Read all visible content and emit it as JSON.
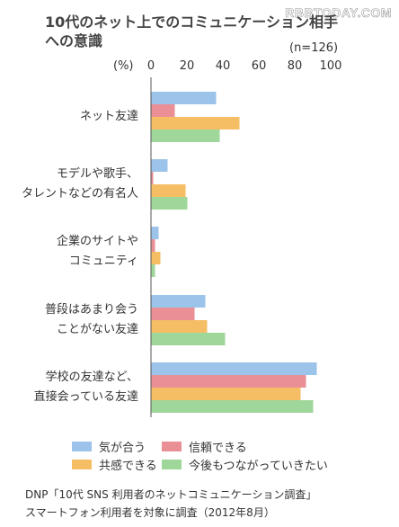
{
  "watermark": "RBBTODAY.COM",
  "chart_data": {
    "type": "bar",
    "orientation": "horizontal",
    "title": "10代のネット上でのコミュニケーション相手への意識",
    "sample_size": "(n=126)",
    "unit_label": "(%)",
    "xlim": [
      0,
      100
    ],
    "ticks": [
      0,
      20,
      40,
      60,
      80,
      100
    ],
    "grid": false,
    "legend_position": "bottom",
    "categories": [
      "ネット友達",
      "モデルや歌手、\nタレントなどの有名人",
      "企業のサイトや\nコミュニティ",
      "普段はあまり会う\nことがない友達",
      "学校の友達など、\n直接会っている友達"
    ],
    "series": [
      {
        "name": "気が合う",
        "color": "#9cc3ea",
        "values": [
          36,
          9,
          4,
          30,
          92
        ]
      },
      {
        "name": "信頼できる",
        "color": "#ea8f96",
        "values": [
          13,
          1,
          2,
          24,
          86
        ]
      },
      {
        "name": "共感できる",
        "color": "#f5bd64",
        "values": [
          49,
          19,
          5,
          31,
          83
        ]
      },
      {
        "name": "今後もつながっていきたい",
        "color": "#9fd69a",
        "values": [
          38,
          20,
          2,
          41,
          90
        ]
      }
    ]
  },
  "source_lines": [
    "DNP「10代 SNS 利用者のネットコミュニケーション調査」",
    "スマートフォン利用者を対象に調査（2012年8月）"
  ]
}
